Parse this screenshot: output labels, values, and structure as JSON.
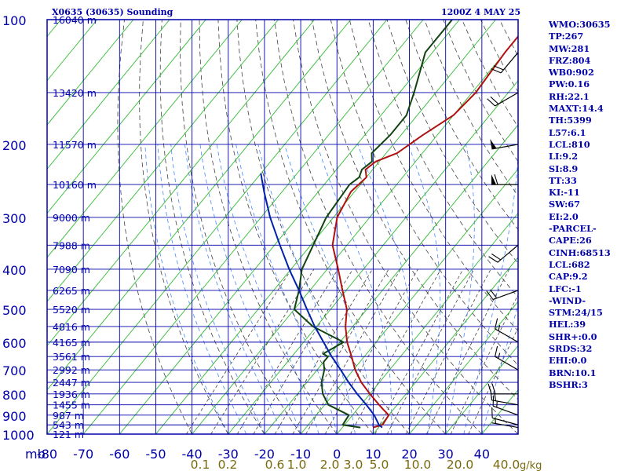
{
  "header": {
    "station": "X0635 (30635) Sounding",
    "time": "1200Z  4 MAY 25"
  },
  "indices": [
    "WMO:30635",
    "TP:267",
    "MW:281",
    "FRZ:804",
    "WB0:902",
    "PW:0.16",
    "RH:22.1",
    "MAXT:14.4",
    "TH:5399",
    "L57:6.1",
    "LCL:810",
    "LI:9.2",
    "SI:8.9",
    "TT:33",
    "KI:-11",
    "SW:67",
    "EI:2.0",
    "-PARCEL-",
    "CAPE:26",
    "CINH:68513",
    "LCL:682",
    "CAP:9.2",
    "LFC:-1",
    "-WIND-",
    "STM:24/15",
    "HEL:39",
    "SHR+:0.0",
    "SRDS:32",
    "EHI:0.0",
    "BRN:10.1",
    "BSHR:3"
  ],
  "colors": {
    "frame": "#0000aa",
    "grid": "#0000aa",
    "isotherm": "#33bb33",
    "dry_adiabat": "#444444",
    "moist_adiabat": "#4488ff",
    "temperature": "#b01010",
    "dewpoint": "#114411",
    "parcel": "#0022aa",
    "mixing_ratio_label": "#7a6a10"
  },
  "chart_data": {
    "type": "line",
    "title": "X0635 (30635) Sounding",
    "subtitle": "1200Z  4 MAY 25",
    "xlabel": "",
    "ylabel": "mb",
    "x_unit": "°C",
    "xlim": [
      -80,
      50
    ],
    "ylim": [
      1000,
      100
    ],
    "y_scale": "log",
    "grid": true,
    "pressure_ticks": [
      100,
      200,
      300,
      400,
      500,
      600,
      700,
      800,
      900,
      1000
    ],
    "temp_ticks": [
      -80,
      -70,
      -60,
      -50,
      -40,
      -30,
      -20,
      -10,
      0,
      10,
      20,
      30,
      40
    ],
    "height_levels": [
      {
        "p": 1000,
        "label": "121 m"
      },
      {
        "p": 950,
        "label": "543 m"
      },
      {
        "p": 900,
        "label": "987 m"
      },
      {
        "p": 850,
        "label": "1455 m"
      },
      {
        "p": 800,
        "label": "1936 m"
      },
      {
        "p": 750,
        "label": "2447 m"
      },
      {
        "p": 700,
        "label": "2992 m"
      },
      {
        "p": 650,
        "label": "3561 m"
      },
      {
        "p": 600,
        "label": "4165 m"
      },
      {
        "p": 550,
        "label": "4816 m"
      },
      {
        "p": 500,
        "label": "5520 m"
      },
      {
        "p": 450,
        "label": "6265 m"
      },
      {
        "p": 400,
        "label": "7090 m"
      },
      {
        "p": 350,
        "label": "7988 m"
      },
      {
        "p": 300,
        "label": "9000 m"
      },
      {
        "p": 250,
        "label": "10160 m"
      },
      {
        "p": 200,
        "label": "11570 m"
      },
      {
        "p": 150,
        "label": "13420 m"
      },
      {
        "p": 100,
        "label": "16040 m"
      }
    ],
    "mixing_ratio_labels": [
      {
        "w": 0.1,
        "label": "0.1"
      },
      {
        "w": 0.2,
        "label": "0.2"
      },
      {
        "w": 0.6,
        "label": "0.6"
      },
      {
        "w": 1.0,
        "label": "1.0"
      },
      {
        "w": 2.0,
        "label": "2.0"
      },
      {
        "w": 3.0,
        "label": "3.0"
      },
      {
        "w": 5.0,
        "label": "5.0"
      },
      {
        "w": 10.0,
        "label": "10.0"
      },
      {
        "w": 20.0,
        "label": "20.0"
      },
      {
        "w": 40.0,
        "label": "40.0"
      }
    ],
    "mixing_ratio_unit": "g/kg",
    "series": [
      {
        "key": "temperature",
        "points": [
          [
            964,
            8.5
          ],
          [
            950,
            10.5
          ],
          [
            900,
            10
          ],
          [
            870,
            7
          ],
          [
            850,
            5
          ],
          [
            800,
            0
          ],
          [
            750,
            -5
          ],
          [
            700,
            -9.5
          ],
          [
            650,
            -13.5
          ],
          [
            600,
            -18
          ],
          [
            550,
            -22
          ],
          [
            500,
            -25.5
          ],
          [
            450,
            -31
          ],
          [
            400,
            -37
          ],
          [
            350,
            -44
          ],
          [
            300,
            -49
          ],
          [
            260,
            -51
          ],
          [
            240,
            -50
          ],
          [
            230,
            -52
          ],
          [
            220,
            -51
          ],
          [
            210,
            -47
          ],
          [
            190,
            -44
          ],
          [
            170,
            -40
          ],
          [
            150,
            -39
          ],
          [
            120,
            -40
          ],
          [
            100,
            -40
          ]
        ]
      },
      {
        "key": "dewpoint",
        "points": [
          [
            964,
            5
          ],
          [
            950,
            -0.5
          ],
          [
            900,
            -1
          ],
          [
            850,
            -9
          ],
          [
            800,
            -13
          ],
          [
            750,
            -16
          ],
          [
            700,
            -18
          ],
          [
            670,
            -20
          ],
          [
            650,
            -20
          ],
          [
            640,
            -22
          ],
          [
            600,
            -19
          ],
          [
            550,
            -31
          ],
          [
            500,
            -40
          ],
          [
            450,
            -43
          ],
          [
            400,
            -47
          ],
          [
            300,
            -52
          ],
          [
            250,
            -53
          ],
          [
            240,
            -52
          ],
          [
            230,
            -53
          ],
          [
            220,
            -52
          ],
          [
            210,
            -54
          ],
          [
            190,
            -53
          ],
          [
            170,
            -53
          ],
          [
            150,
            -56
          ],
          [
            120,
            -62
          ],
          [
            100,
            -62
          ]
        ]
      },
      {
        "key": "parcel",
        "points": [
          [
            964,
            11
          ],
          [
            950,
            9.5
          ],
          [
            900,
            6
          ],
          [
            850,
            1.5
          ],
          [
            800,
            -3.5
          ],
          [
            750,
            -8.5
          ],
          [
            700,
            -13.5
          ],
          [
            650,
            -19
          ],
          [
            600,
            -24.5
          ],
          [
            550,
            -30.5
          ],
          [
            500,
            -36.5
          ],
          [
            450,
            -43
          ],
          [
            400,
            -50.5
          ],
          [
            350,
            -58.5
          ],
          [
            300,
            -67.5
          ],
          [
            260,
            -75
          ],
          [
            235,
            -80
          ]
        ]
      }
    ],
    "wind_barbs": [
      {
        "p": 964,
        "dir": 280,
        "kt": 5
      },
      {
        "p": 950,
        "dir": 285,
        "kt": 10
      },
      {
        "p": 900,
        "dir": 290,
        "kt": 15
      },
      {
        "p": 850,
        "dir": 280,
        "kt": 20
      },
      {
        "p": 800,
        "dir": 270,
        "kt": 20
      },
      {
        "p": 700,
        "dir": 300,
        "kt": 15
      },
      {
        "p": 600,
        "dir": 300,
        "kt": 15
      },
      {
        "p": 450,
        "dir": 250,
        "kt": 20
      },
      {
        "p": 350,
        "dir": 230,
        "kt": 20
      },
      {
        "p": 250,
        "dir": 270,
        "kt": 60
      },
      {
        "p": 200,
        "dir": 260,
        "kt": 50
      },
      {
        "p": 150,
        "dir": 240,
        "kt": 20
      },
      {
        "p": 120,
        "dir": 220,
        "kt": 20
      }
    ]
  }
}
